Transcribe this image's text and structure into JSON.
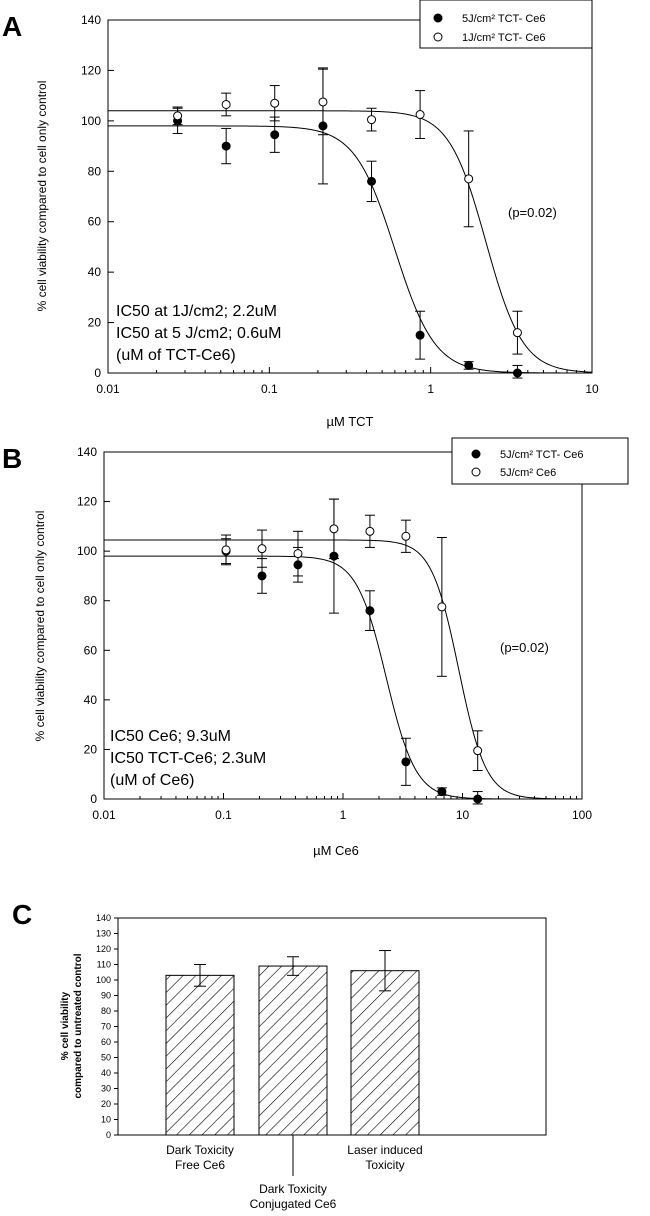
{
  "chart_data": [
    {
      "panel": "A",
      "type": "scatter",
      "xscale": "log",
      "xlim": [
        0.01,
        10
      ],
      "ylim": [
        0,
        140
      ],
      "xticks": [
        0.01,
        0.1,
        1,
        10
      ],
      "xtick_labels": [
        "0.01",
        "0.1",
        "1",
        "10"
      ],
      "yticks": [
        0,
        20,
        40,
        60,
        80,
        100,
        120,
        140
      ],
      "ytick_labels": [
        "0",
        "20",
        "40",
        "60",
        "80",
        "100",
        "120",
        "140"
      ],
      "xlabel": "µM TCT",
      "ylabel": "% cell viability compared to cell only control",
      "legend": [
        "5J/cm² TCT- Ce6",
        "1J/cm²  TCT- Ce6"
      ],
      "annotations": [
        "IC50 at 1J/cm2; 2.2uM",
        "IC50 at 5 J/cm2; 0.6uM",
        "(uM of TCT-Ce6)"
      ],
      "pvalue": "(p=0.02)",
      "series": [
        {
          "name": "5J/cm² TCT- Ce6",
          "marker": "filled",
          "x": [
            0.027,
            0.054,
            0.108,
            0.215,
            0.43,
            0.86,
            1.72,
            3.45
          ],
          "y": [
            100,
            90,
            94.5,
            98,
            76,
            15,
            3,
            0
          ],
          "err": [
            5,
            7,
            7,
            23,
            8,
            9.5,
            1.5,
            3
          ],
          "fit": {
            "top": 98,
            "bottom": 0,
            "ic50": 0.6,
            "hill": 3.5
          }
        },
        {
          "name": "1J/cm²  TCT- Ce6",
          "marker": "open",
          "x": [
            0.027,
            0.054,
            0.108,
            0.215,
            0.43,
            0.86,
            1.72,
            3.45
          ],
          "y": [
            102,
            106.5,
            107,
            107.5,
            100.5,
            102.5,
            77,
            16
          ],
          "err": [
            3.5,
            4.5,
            7,
            13,
            4.5,
            9.5,
            19,
            8.5
          ],
          "fit": {
            "top": 104,
            "bottom": 0,
            "ic50": 2.2,
            "hill": 3.8
          }
        }
      ]
    },
    {
      "panel": "B",
      "type": "scatter",
      "xscale": "log",
      "xlim": [
        0.01,
        100
      ],
      "ylim": [
        0,
        140
      ],
      "xticks": [
        0.01,
        0.1,
        1,
        10,
        100
      ],
      "xtick_labels": [
        "0.01",
        "0.1",
        "1",
        "10",
        "100"
      ],
      "yticks": [
        0,
        20,
        40,
        60,
        80,
        100,
        120,
        140
      ],
      "ytick_labels": [
        "0",
        "20",
        "40",
        "60",
        "80",
        "100",
        "120",
        "140"
      ],
      "xlabel": "µM Ce6",
      "ylabel": "% cell viability compared to cell only control",
      "legend": [
        "5J/cm² TCT- Ce6",
        "5J/cm² Ce6"
      ],
      "annotations": [
        "IC50 Ce6; 9.3uM",
        "IC50 TCT-Ce6; 2.3uM",
        "(uM of Ce6)"
      ],
      "pvalue": "(p=0.02)",
      "series": [
        {
          "name": "5J/cm² TCT- Ce6",
          "marker": "filled",
          "x": [
            0.105,
            0.21,
            0.42,
            0.84,
            1.68,
            3.36,
            6.72,
            13.4
          ],
          "y": [
            100,
            90,
            94.5,
            98,
            76,
            15,
            3,
            0
          ],
          "err": [
            5,
            7,
            7,
            23,
            8,
            9.5,
            1.5,
            3
          ],
          "fit": {
            "top": 98,
            "bottom": 0,
            "ic50": 2.3,
            "hill": 3.5
          }
        },
        {
          "name": "5J/cm² Ce6",
          "marker": "open",
          "x": [
            0.105,
            0.21,
            0.42,
            0.84,
            1.68,
            3.36,
            6.72,
            13.4
          ],
          "y": [
            100.5,
            101,
            99,
            109,
            108,
            106,
            77.5,
            19.5
          ],
          "err": [
            6,
            7.5,
            9,
            12,
            6.5,
            6.5,
            28,
            8
          ],
          "fit": {
            "top": 104.5,
            "bottom": 0,
            "ic50": 9.3,
            "hill": 3.8
          }
        }
      ]
    },
    {
      "panel": "C",
      "type": "bar",
      "ylim": [
        0,
        140
      ],
      "yticks": [
        0,
        10,
        20,
        30,
        40,
        50,
        60,
        70,
        80,
        90,
        100,
        110,
        120,
        130,
        140
      ],
      "ytick_labels": [
        "0",
        "10",
        "20",
        "30",
        "40",
        "50",
        "60",
        "70",
        "80",
        "90",
        "100",
        "110",
        "120",
        "130",
        "140"
      ],
      "ylabel_lines": [
        "% cell viability",
        "compared to untreated control"
      ],
      "categories": [
        [
          "Dark Toxicity",
          "Free Ce6"
        ],
        [
          "Dark Toxicity",
          "Conjugated Ce6"
        ],
        [
          "Laser induced",
          "Toxicity"
        ]
      ],
      "values": [
        103,
        109,
        106
      ],
      "err": [
        7,
        6,
        13
      ]
    }
  ]
}
